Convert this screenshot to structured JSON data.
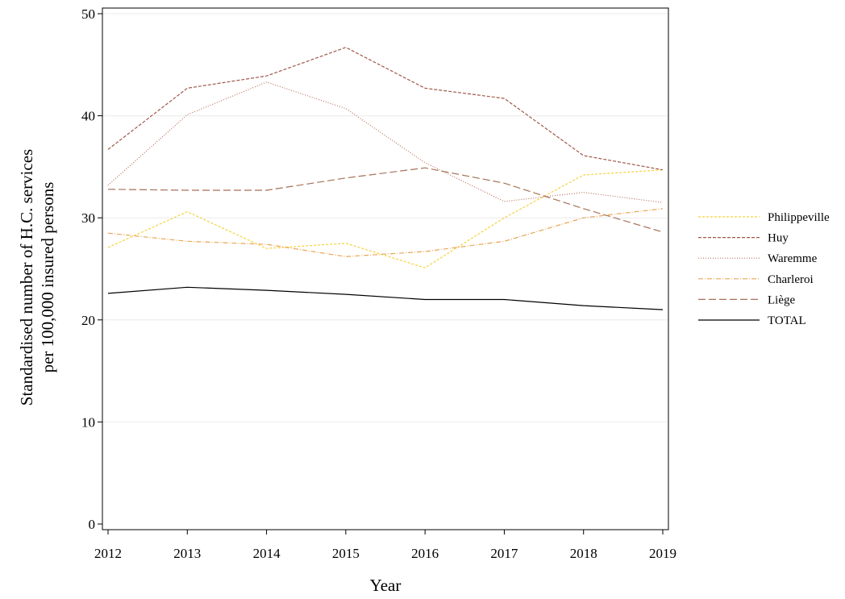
{
  "chart_data": {
    "type": "line",
    "title": "",
    "xlabel": "Year",
    "ylabel_lines": [
      "Standardised number of H.C. services",
      "per 100,000 insured persons"
    ],
    "x": [
      2012,
      2013,
      2014,
      2015,
      2016,
      2017,
      2018,
      2019
    ],
    "xlim": [
      2012,
      2019
    ],
    "ylim": [
      0,
      50
    ],
    "yticks": [
      0,
      10,
      20,
      30,
      40,
      50
    ],
    "grid": true,
    "legend_position": "right",
    "series": [
      {
        "name": "Philippeville",
        "color": "#f5d23c",
        "dash": "3,2",
        "width": 1.2,
        "values": [
          27.1,
          30.6,
          27.0,
          27.5,
          25.1,
          30.0,
          34.2,
          34.7
        ]
      },
      {
        "name": "Huy",
        "color": "#a0584a",
        "dash": "4,2",
        "width": 1.2,
        "values": [
          36.7,
          42.7,
          43.9,
          46.7,
          42.7,
          41.7,
          36.1,
          34.7
        ]
      },
      {
        "name": "Waremme",
        "color": "#b8755e",
        "dash": "1,2",
        "width": 1.2,
        "values": [
          33.2,
          40.1,
          43.3,
          40.7,
          35.4,
          31.6,
          32.5,
          31.5
        ]
      },
      {
        "name": "Charleroi",
        "color": "#e8a656",
        "dash": "6,2,1,2",
        "width": 1.2,
        "values": [
          28.5,
          27.7,
          27.4,
          26.2,
          26.7,
          27.7,
          30.0,
          30.9
        ]
      },
      {
        "name": "Liège",
        "color": "#a57258",
        "dash": "9,4",
        "width": 1.2,
        "values": [
          32.8,
          32.7,
          32.7,
          33.9,
          34.9,
          33.4,
          30.9,
          28.6
        ]
      },
      {
        "name": "TOTAL",
        "color": "#000000",
        "dash": "",
        "width": 1.2,
        "values": [
          22.6,
          23.2,
          22.9,
          22.5,
          22.0,
          22.0,
          21.4,
          21.0
        ]
      }
    ]
  }
}
